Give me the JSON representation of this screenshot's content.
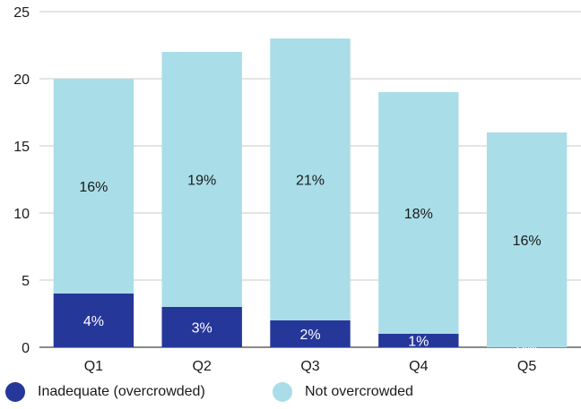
{
  "chart_data": {
    "type": "bar",
    "stacked": true,
    "categories": [
      "Q1",
      "Q2",
      "Q3",
      "Q4",
      "Q5"
    ],
    "series": [
      {
        "name": "Inadequate (overcrowded)",
        "values": [
          4,
          3,
          2,
          1,
          0
        ],
        "labels": [
          "4%",
          "3%",
          "2%",
          "1%",
          "0%"
        ],
        "color": "#26379a",
        "label_color": "#ffffff"
      },
      {
        "name": "Not overcrowded",
        "values": [
          16,
          19,
          21,
          18,
          16
        ],
        "labels": [
          "16%",
          "19%",
          "21%",
          "18%",
          "16%"
        ],
        "color": "#a9dde8",
        "label_color": "#1a1a1a"
      }
    ],
    "yticks": [
      "0",
      "5",
      "10",
      "15",
      "20",
      "25"
    ],
    "ylim": [
      0,
      25
    ],
    "grid": true,
    "legend_position": "bottom"
  }
}
